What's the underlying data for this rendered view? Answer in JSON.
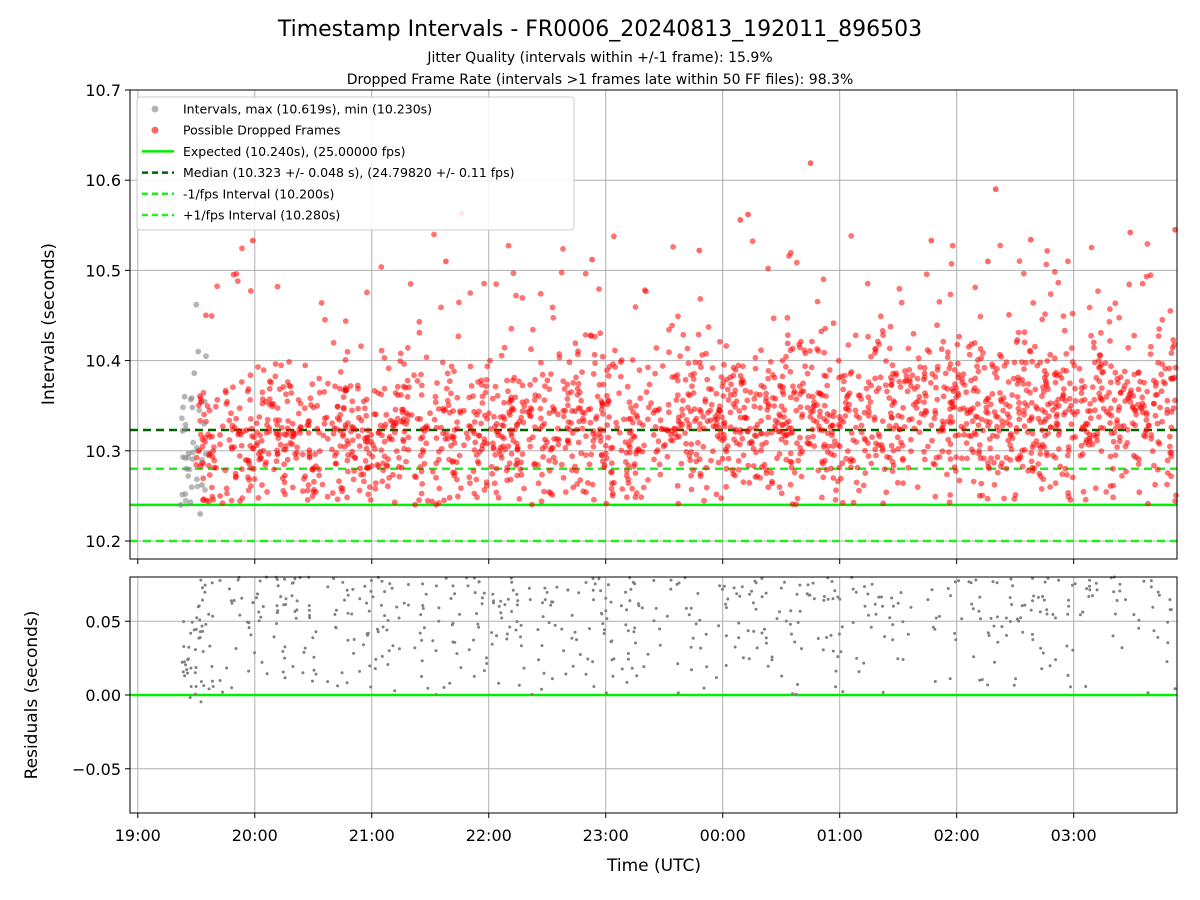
{
  "title": "Timestamp Intervals - FR0006_20240813_192011_896503",
  "subtitle_1": "Jitter Quality (intervals within +/-1 frame): 15.9%",
  "subtitle_2": "Dropped Frame Rate (intervals >1 frames late within 50 FF files): 98.3%",
  "colors": {
    "interval_points": "#808080",
    "dropped_points": "#ff0000",
    "expected_line": "#00ee00",
    "median_line": "#006400",
    "fps_lines": "#22ee22",
    "residual_points": "#808080",
    "grid": "#b0b0b0"
  },
  "chart_data": [
    {
      "type": "scatter",
      "panel": "intervals",
      "ylabel": "Intervals (seconds)",
      "xlabel": "",
      "xlim": [
        "18:56",
        "03:53"
      ],
      "ylim": [
        10.18,
        10.7
      ],
      "yticks": [
        10.2,
        10.3,
        10.4,
        10.5,
        10.6,
        10.7
      ],
      "ytick_labels": [
        "10.2",
        "10.3",
        "10.4",
        "10.5",
        "10.6",
        "10.7"
      ],
      "grid": true,
      "legend_position": "upper-left",
      "legend": [
        "Intervals, max (10.619s), min (10.230s)",
        "Possible Dropped Frames",
        "Expected (10.240s), (25.00000 fps)",
        "Median (10.323 +/- 0.048 s), (24.79820 +/- 0.11 fps)",
        "-1/fps Interval (10.200s)",
        "+1/fps Interval (10.280s)"
      ],
      "reference_lines": [
        {
          "name": "Expected",
          "y": 10.24,
          "style": "solid"
        },
        {
          "name": "Median",
          "y": 10.323,
          "style": "dashed"
        },
        {
          "name": "-1/fps Interval",
          "y": 10.2,
          "style": "dashed"
        },
        {
          "name": "+1/fps Interval",
          "y": 10.28,
          "style": "dashed"
        }
      ],
      "series": [
        {
          "name": "Intervals, max (10.619s), min (10.230s)",
          "x_range": [
            "19:22",
            "19:35"
          ],
          "y_range": [
            10.23,
            10.462
          ],
          "points": [
            [
              "19:22",
              10.24
            ],
            [
              "19:23",
              10.322
            ],
            [
              "19:24",
              10.36
            ],
            [
              "19:25",
              10.28
            ],
            [
              "19:26",
              10.297
            ],
            [
              "19:27",
              10.243
            ],
            [
              "19:28",
              10.348
            ],
            [
              "19:29",
              10.386
            ],
            [
              "19:30",
              10.462
            ],
            [
              "19:31",
              10.41
            ],
            [
              "19:32",
              10.23
            ],
            [
              "19:33",
              10.262
            ],
            [
              "19:34",
              10.33
            ],
            [
              "19:35",
              10.405
            ]
          ]
        },
        {
          "name": "Possible Dropped Frames",
          "x_range": [
            "19:30",
            "03:53"
          ],
          "y_range": [
            10.24,
            10.619
          ],
          "count": 2200,
          "notable_points": [
            [
              "19:59",
              10.533
            ],
            [
              "21:38",
              10.51
            ],
            [
              "21:46",
              10.563
            ],
            [
              "22:53",
              10.512
            ],
            [
              "23:48",
              10.522
            ],
            [
              "00:09",
              10.556
            ],
            [
              "00:13",
              10.562
            ],
            [
              "00:45",
              10.619
            ],
            [
              "01:47",
              10.533
            ],
            [
              "02:16",
              10.51
            ],
            [
              "02:20",
              10.59
            ],
            [
              "02:38",
              10.534
            ],
            [
              "03:29",
              10.542
            ],
            [
              "03:52",
              10.545
            ]
          ]
        }
      ]
    },
    {
      "type": "scatter",
      "panel": "residuals",
      "ylabel": "Residuals (seconds)",
      "xlabel": "Time (UTC)",
      "xlim": [
        "18:56",
        "03:53"
      ],
      "ylim": [
        -0.08,
        0.08
      ],
      "yticks": [
        -0.05,
        0.0,
        0.05
      ],
      "ytick_labels": [
        "−0.05",
        "0.00",
        "0.05"
      ],
      "xticks": [
        "19:00",
        "20:00",
        "21:00",
        "22:00",
        "23:00",
        "00:00",
        "01:00",
        "02:00",
        "03:00"
      ],
      "grid": true,
      "reference_lines": [
        {
          "name": "zero",
          "y": 0.0,
          "style": "solid"
        }
      ],
      "series": [
        {
          "name": "",
          "x_range": [
            "19:22",
            "03:53"
          ],
          "y_range": [
            -0.01,
            0.08
          ],
          "count": 1500
        }
      ]
    }
  ]
}
